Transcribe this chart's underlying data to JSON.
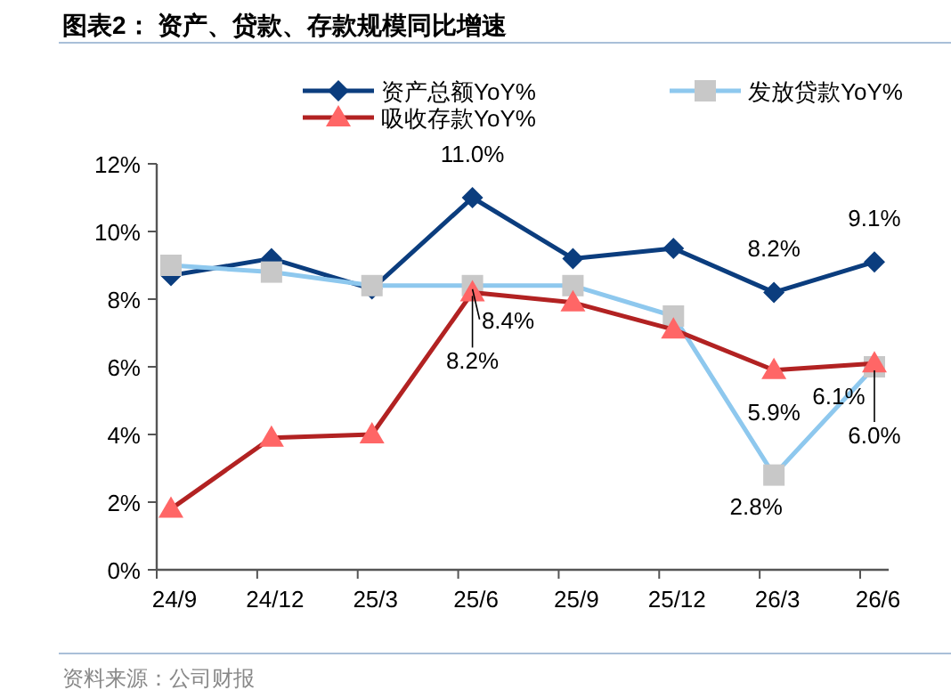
{
  "chart_data": {
    "type": "line",
    "title": "图表2： 资产、贷款、存款规模同比增速",
    "categories": [
      "24/9",
      "24/12",
      "25/3",
      "25/6",
      "25/9",
      "25/12",
      "26/3",
      "26/6"
    ],
    "series": [
      {
        "name": "资产总额YoY%",
        "color": "#0b3d7e",
        "marker": "diamond",
        "values": [
          8.7,
          9.2,
          8.3,
          11.0,
          9.2,
          9.5,
          8.2,
          9.1
        ],
        "value_labels": [
          null,
          null,
          null,
          "11.0%",
          null,
          null,
          "8.2%",
          "9.1%"
        ]
      },
      {
        "name": "发放贷款YoY%",
        "color": "#8ec8ee",
        "marker": "square",
        "values": [
          9.0,
          8.8,
          8.4,
          8.4,
          8.4,
          7.5,
          2.8,
          6.0
        ],
        "value_labels": [
          null,
          null,
          null,
          "8.4%",
          null,
          null,
          "2.8%",
          "6.0%"
        ]
      },
      {
        "name": "吸收存款YoY%",
        "color": "#b22222",
        "marker": "triangle",
        "values": [
          1.8,
          3.9,
          4.0,
          8.2,
          7.9,
          7.1,
          5.9,
          6.1
        ],
        "value_labels": [
          null,
          null,
          null,
          "8.2%",
          null,
          null,
          "5.9%",
          "6.1%"
        ]
      }
    ],
    "ylim": [
      0,
      12
    ],
    "yticks": [
      {
        "value": 0,
        "label": "0%"
      },
      {
        "value": 2,
        "label": "2%"
      },
      {
        "value": 4,
        "label": "4%"
      },
      {
        "value": 6,
        "label": "6%"
      },
      {
        "value": 8,
        "label": "8%"
      },
      {
        "value": 10,
        "label": "10%"
      },
      {
        "value": 12,
        "label": "12%"
      }
    ],
    "legend": "top",
    "grid": false,
    "annotations": [
      "资料来源：公司财报"
    ]
  }
}
